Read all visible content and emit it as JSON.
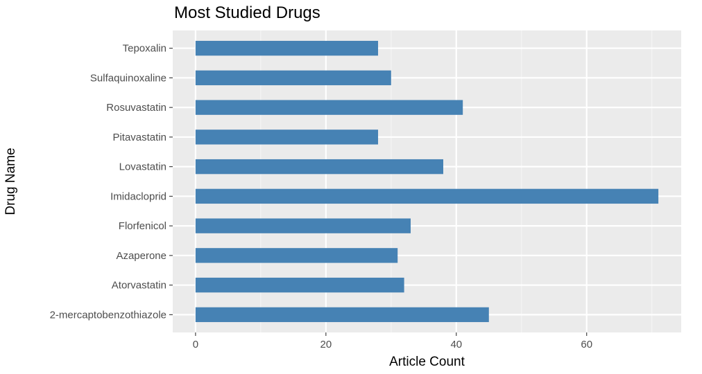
{
  "chart_data": {
    "type": "bar",
    "orientation": "horizontal",
    "title": "Most Studied Drugs",
    "xlabel": "Article Count",
    "ylabel": "Drug Name",
    "xlim": [
      -3.5,
      74.5
    ],
    "xticks": [
      0,
      20,
      40,
      60
    ],
    "categories": [
      "2-mercaptobenzothiazole",
      "Atorvastatin",
      "Azaperone",
      "Florfenicol",
      "Imidacloprid",
      "Lovastatin",
      "Pitavastatin",
      "Rosuvastatin",
      "Sulfaquinoxaline",
      "Tepoxalin"
    ],
    "values": [
      45,
      32,
      31,
      33,
      71,
      38,
      28,
      41,
      30,
      28
    ],
    "grid": true,
    "legend": "none",
    "colors": {
      "bar": "#4682b4",
      "panel_background": "#ebebeb",
      "grid_major": "#ffffff",
      "grid_minor": "#f5f5f5",
      "tick_label": "#4d4d4d",
      "tick_mark": "#333333"
    }
  }
}
